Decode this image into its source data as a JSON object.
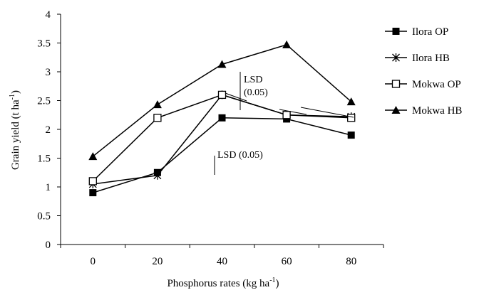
{
  "chart_data": {
    "type": "line",
    "title": "",
    "xlabel": "Phosphorus rates (kg ha",
    "xlabel_sup": "-1",
    "xlabel_close": ")",
    "ylabel": "Grain yield (t ha",
    "ylabel_sup": "-1",
    "ylabel_close": ")",
    "x": [
      0,
      20,
      40,
      60,
      80
    ],
    "x_tick_labels": [
      "0",
      "20",
      "40",
      "60",
      "80"
    ],
    "xlim": [
      -10,
      90
    ],
    "ylim": [
      0,
      4
    ],
    "y_ticks": [
      0,
      0.5,
      1,
      1.5,
      2,
      2.5,
      3,
      3.5,
      4
    ],
    "y_tick_labels": [
      "0",
      "0.5",
      "1",
      "1.5",
      "2",
      "2.5",
      "3",
      "3.5",
      "4"
    ],
    "grid": false,
    "legend_position": "right",
    "series": [
      {
        "name": "Ilora OP",
        "marker": "filled-square",
        "values": [
          0.9,
          1.25,
          2.2,
          2.18,
          1.9
        ]
      },
      {
        "name": "Ilora HB",
        "marker": "star",
        "values": [
          1.05,
          1.2,
          2.6,
          2.25,
          2.22
        ]
      },
      {
        "name": "Mokwa OP",
        "marker": "open-square",
        "values": [
          1.1,
          2.2,
          2.6,
          2.25,
          2.2
        ]
      },
      {
        "name": "Mokwa HB",
        "marker": "filled-triangle",
        "values": [
          1.53,
          2.43,
          3.13,
          3.47,
          2.48
        ]
      }
    ],
    "annotations": [
      {
        "id": "lsd-upper",
        "lines": [
          "LSD",
          "(0.05)"
        ]
      },
      {
        "id": "lsd-lower",
        "lines": [
          "LSD (0.05)"
        ]
      }
    ]
  }
}
